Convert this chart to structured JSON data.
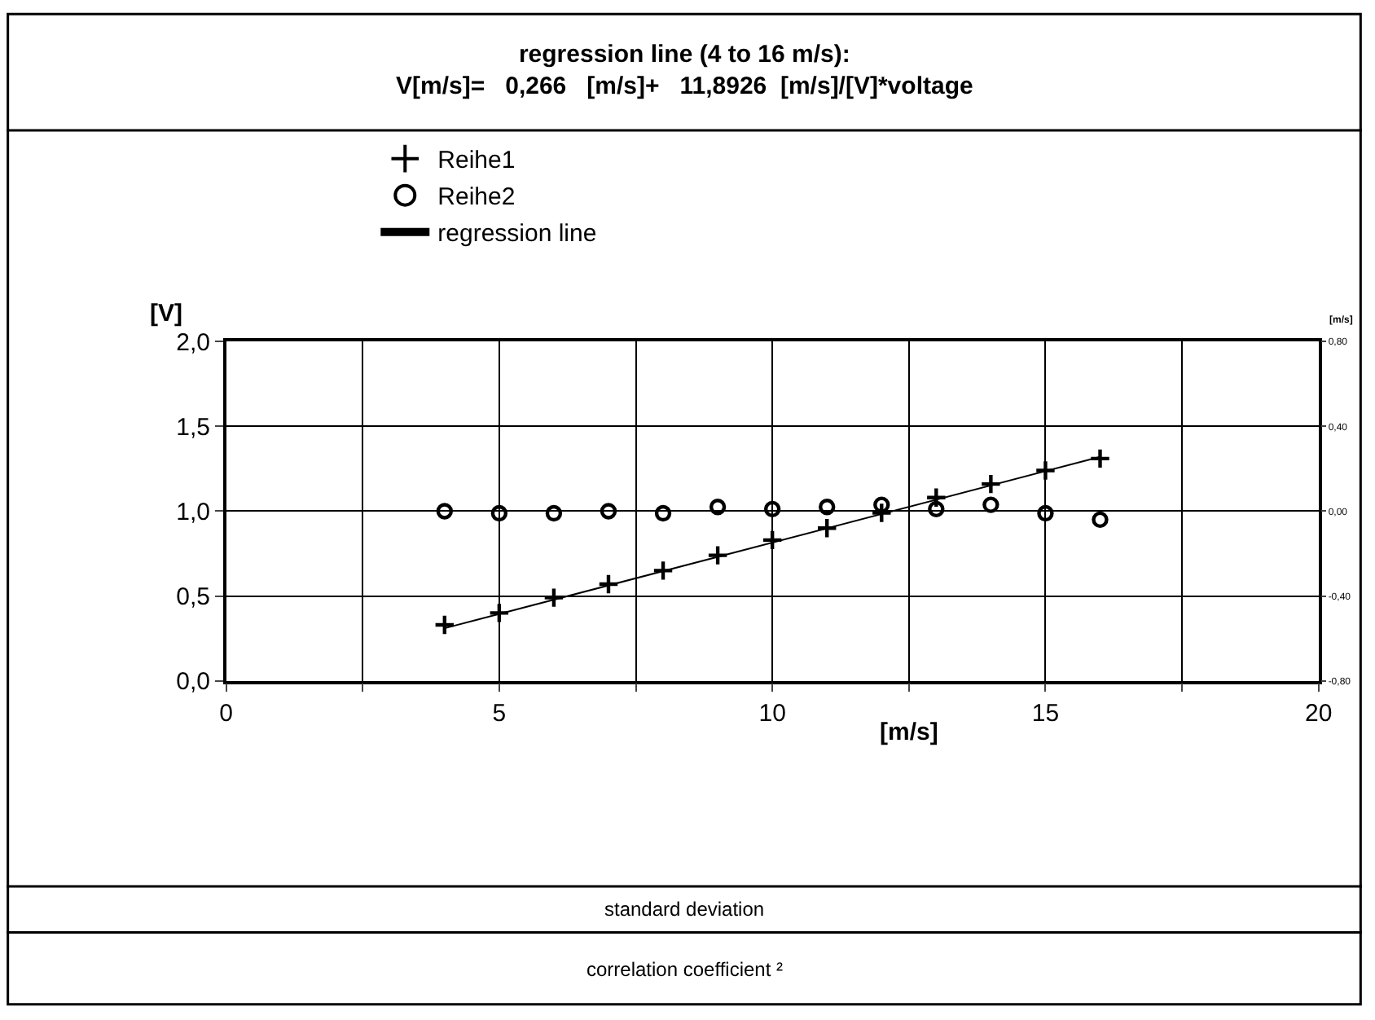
{
  "chart_data": {
    "type": "scatter",
    "title": "regression line (4 to 16 m/s):\nV[m/s]=   0,266   [m/s]+   11,8926  [m/s]/[V]*voltage",
    "xlabel": "[m/s]",
    "ylabel": "[V]",
    "y2label": "[m/s]",
    "x": [
      4,
      5,
      6,
      7,
      8,
      9,
      10,
      11,
      12,
      13,
      14,
      15,
      16
    ],
    "series": [
      {
        "name": "Reihe1",
        "color": "#000000",
        "marker": "cross",
        "values": [
          0.33,
          0.4,
          0.49,
          0.57,
          0.65,
          0.74,
          0.83,
          0.9,
          0.99,
          1.08,
          1.16,
          1.24,
          1.31
        ]
      },
      {
        "name": "Reihe2",
        "color": "#000000",
        "marker": "circle",
        "axis": "y2",
        "values": [
          0.0,
          -0.01,
          -0.01,
          0.0,
          -0.01,
          0.02,
          0.01,
          0.02,
          0.03,
          0.01,
          0.03,
          -0.01,
          -0.04
        ]
      },
      {
        "name": "regression line",
        "type": "line",
        "color": "#000000",
        "marker": "none",
        "line_style": "solid",
        "x": [
          4,
          16
        ],
        "values": [
          0.31,
          1.32
        ]
      }
    ],
    "xlim": [
      0,
      20
    ],
    "xticks": [
      0,
      {
        "value": 2.5,
        "label": null
      },
      5,
      {
        "value": 7.5,
        "label": null
      },
      10,
      {
        "value": 12.5,
        "label": null
      },
      15,
      {
        "value": 17.5,
        "label": null
      },
      20
    ],
    "ylim": [
      0,
      2
    ],
    "yticks": [
      {
        "value": 0,
        "label": "0,0"
      },
      {
        "value": 0.5,
        "label": "0,5"
      },
      {
        "value": 1,
        "label": "1,0"
      },
      {
        "value": 1.5,
        "label": "1,5"
      },
      {
        "value": 2,
        "label": "2,0"
      }
    ],
    "y2lim": [
      -0.8,
      0.8
    ],
    "y2ticks": [
      {
        "value": -0.8,
        "label": "-0,80"
      },
      {
        "value": -0.4,
        "label": "-0,40"
      },
      {
        "value": 0,
        "label": "0,00"
      },
      {
        "value": 0.4,
        "label": "0,40"
      },
      {
        "value": 0.8,
        "label": "0,80"
      }
    ],
    "grid": true,
    "legend": "top left",
    "annotations": [
      "standard deviation",
      "correlation coefficient ²"
    ]
  }
}
